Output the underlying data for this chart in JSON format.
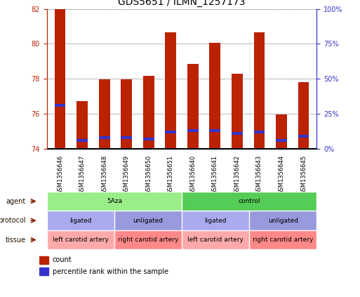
{
  "title": "GDS5651 / ILMN_1257173",
  "samples": [
    "GSM1356646",
    "GSM1356647",
    "GSM1356648",
    "GSM1356649",
    "GSM1356650",
    "GSM1356651",
    "GSM1356640",
    "GSM1356641",
    "GSM1356642",
    "GSM1356643",
    "GSM1356644",
    "GSM1356645"
  ],
  "bar_values": [
    82.0,
    76.7,
    77.95,
    77.95,
    78.15,
    80.65,
    78.85,
    80.05,
    78.3,
    80.65,
    75.95,
    77.8
  ],
  "percentile_values": [
    30,
    5,
    7,
    7,
    6,
    11,
    12,
    12,
    10,
    11,
    5,
    8
  ],
  "ymin": 74,
  "ymax": 82,
  "y_ticks": [
    74,
    76,
    78,
    80,
    82
  ],
  "y2_ticks": [
    0,
    25,
    50,
    75,
    100
  ],
  "y2_tick_labels": [
    "0%",
    "25%",
    "50%",
    "75%",
    "100%"
  ],
  "bar_color": "#BB2200",
  "percentile_color": "#3333CC",
  "grid_color": "#000000",
  "agent_groups": [
    {
      "label": "5Aza",
      "span": [
        0,
        5
      ],
      "color": "#99EE88"
    },
    {
      "label": "control",
      "span": [
        6,
        11
      ],
      "color": "#55CC55"
    }
  ],
  "protocol_groups": [
    {
      "label": "ligated",
      "span": [
        0,
        2
      ],
      "color": "#AAAAEE"
    },
    {
      "label": "unligated",
      "span": [
        3,
        5
      ],
      "color": "#9999DD"
    },
    {
      "label": "ligated",
      "span": [
        6,
        8
      ],
      "color": "#AAAAEE"
    },
    {
      "label": "unligated",
      "span": [
        9,
        11
      ],
      "color": "#9999DD"
    }
  ],
  "tissue_groups": [
    {
      "label": "left carotid artery",
      "span": [
        0,
        2
      ],
      "color": "#FFAAAA"
    },
    {
      "label": "right carotid artery",
      "span": [
        3,
        5
      ],
      "color": "#FF8888"
    },
    {
      "label": "left carotid artery",
      "span": [
        6,
        8
      ],
      "color": "#FFAAAA"
    },
    {
      "label": "right carotid artery",
      "span": [
        9,
        11
      ],
      "color": "#FF8888"
    }
  ],
  "row_labels": [
    "agent",
    "protocol",
    "tissue"
  ],
  "legend_count_label": "count",
  "legend_percentile_label": "percentile rank within the sample",
  "title_color": "#000000",
  "left_axis_color": "#BB2200",
  "right_axis_color": "#3333CC"
}
